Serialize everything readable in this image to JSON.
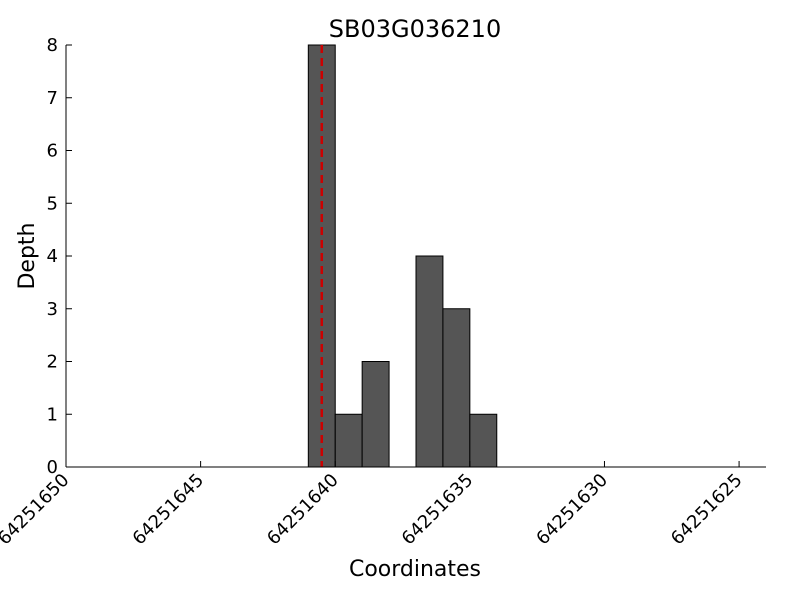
{
  "chart_data": {
    "type": "histogram",
    "title": "SB03G036210",
    "x_label": "Coordinates",
    "y_label": "Depth",
    "bins": [
      64251641,
      64251640,
      64251639,
      64251638,
      64251637,
      64251636,
      64251635,
      64251634
    ],
    "values": [
      8,
      1,
      2,
      0,
      4,
      3,
      1
    ],
    "color": "#555555",
    "xlim": [
      64251650,
      64251624
    ],
    "xticks": [
      64251650,
      64251645,
      64251640,
      64251635,
      64251630,
      64251625
    ],
    "ylim": [
      0,
      8
    ],
    "yticks": [
      0,
      1,
      2,
      3,
      4,
      5,
      6,
      7,
      8
    ],
    "vline": {
      "x": 64251640.5,
      "color": "#cc0000"
    }
  }
}
